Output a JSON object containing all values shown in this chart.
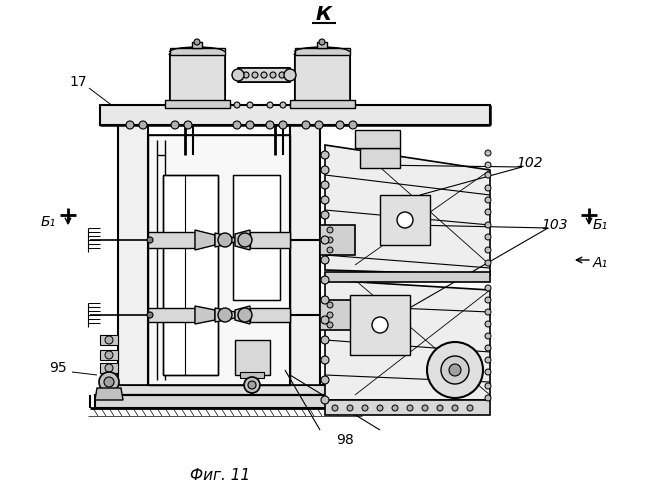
{
  "title_K": "К",
  "fig_caption": "Фиг. 11",
  "label_17": "17",
  "label_95": "95",
  "label_98": "98",
  "label_102": "102",
  "label_103": "103",
  "bg_color": "#ffffff",
  "line_color": "#000000"
}
